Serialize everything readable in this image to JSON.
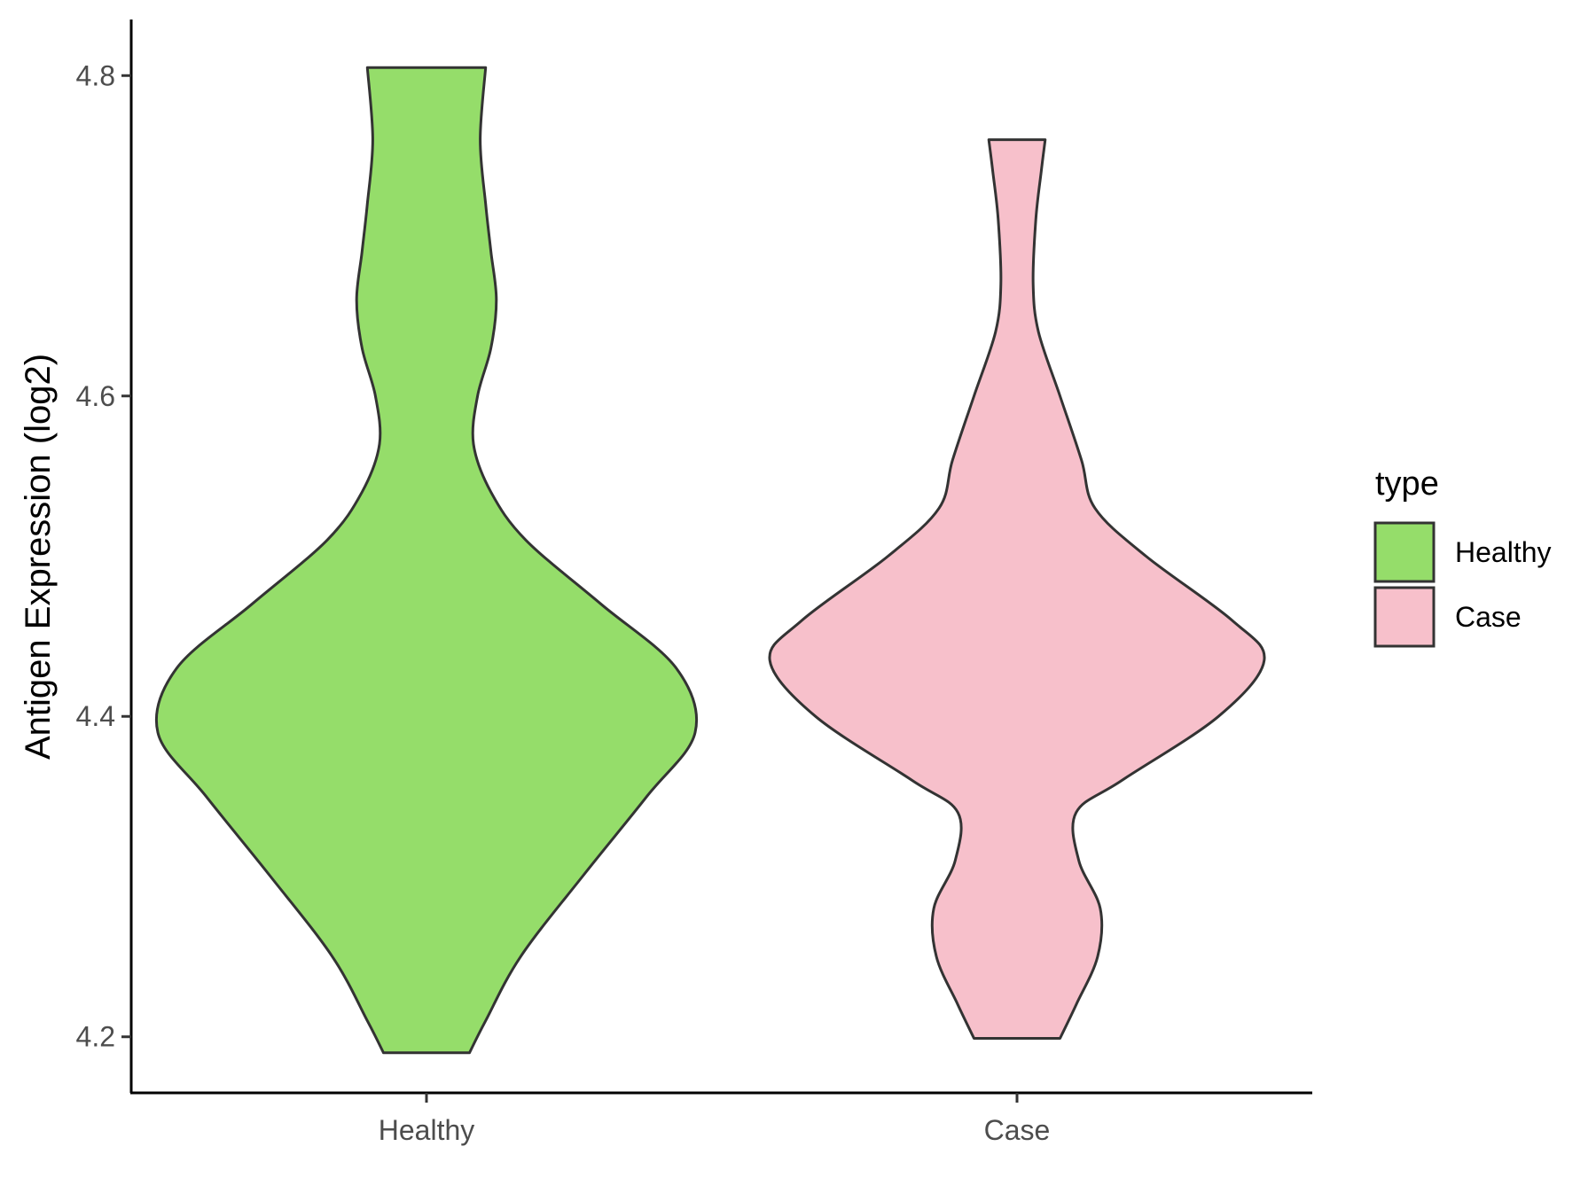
{
  "chart_data": {
    "type": "violin",
    "title": "",
    "xlabel": "",
    "ylabel": "Antigen Expression (log2)",
    "ylim": [
      4.165,
      4.835
    ],
    "yticks": [
      "4.2",
      "4.4",
      "4.6",
      "4.8"
    ],
    "categories": [
      "Healthy",
      "Case"
    ],
    "legend": {
      "title": "type",
      "position": "right",
      "entries": [
        "Healthy",
        "Case"
      ]
    },
    "grid": false,
    "series": [
      {
        "name": "Healthy",
        "color": "#95DD6A",
        "min": 4.19,
        "max": 4.805,
        "profile": [
          [
            4.19,
            0.16
          ],
          [
            4.21,
            0.22
          ],
          [
            4.25,
            0.35
          ],
          [
            4.3,
            0.58
          ],
          [
            4.35,
            0.82
          ],
          [
            4.39,
            1.0
          ],
          [
            4.43,
            0.93
          ],
          [
            4.47,
            0.65
          ],
          [
            4.51,
            0.37
          ],
          [
            4.54,
            0.24
          ],
          [
            4.57,
            0.175
          ],
          [
            4.6,
            0.19
          ],
          [
            4.63,
            0.24
          ],
          [
            4.66,
            0.26
          ],
          [
            4.69,
            0.24
          ],
          [
            4.72,
            0.22
          ],
          [
            4.76,
            0.2
          ],
          [
            4.805,
            0.22
          ]
        ]
      },
      {
        "name": "Case",
        "color": "#F7C0CB",
        "min": 4.199,
        "max": 4.76,
        "profile": [
          [
            4.199,
            0.16
          ],
          [
            4.22,
            0.22
          ],
          [
            4.25,
            0.3
          ],
          [
            4.28,
            0.31
          ],
          [
            4.31,
            0.23
          ],
          [
            4.34,
            0.22
          ],
          [
            4.36,
            0.39
          ],
          [
            4.4,
            0.75
          ],
          [
            4.435,
            0.92
          ],
          [
            4.46,
            0.8
          ],
          [
            4.5,
            0.48
          ],
          [
            4.53,
            0.29
          ],
          [
            4.56,
            0.24
          ],
          [
            4.6,
            0.16
          ],
          [
            4.64,
            0.08
          ],
          [
            4.67,
            0.06
          ],
          [
            4.71,
            0.07
          ],
          [
            4.74,
            0.09
          ],
          [
            4.76,
            0.105
          ]
        ]
      }
    ]
  }
}
